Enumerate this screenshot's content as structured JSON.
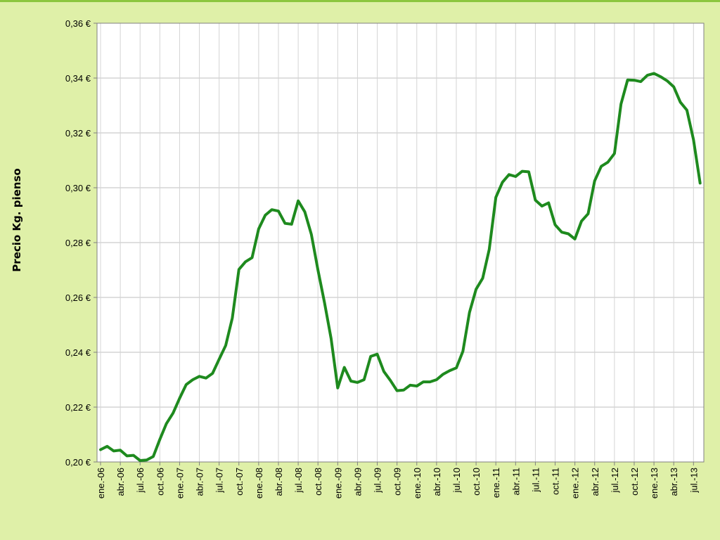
{
  "chart_data": {
    "type": "line",
    "title": "",
    "xlabel": "",
    "ylabel": "Precio Kg. pienso",
    "ylim": [
      0.2,
      0.36
    ],
    "yticks": [
      0.2,
      0.22,
      0.24,
      0.26,
      0.28,
      0.3,
      0.32,
      0.34,
      0.36
    ],
    "ytick_labels": [
      "0,20 €",
      "0,22 €",
      "0,24 €",
      "0,26 €",
      "0,28 €",
      "0,30 €",
      "0,32 €",
      "0,34 €",
      "0,36 €"
    ],
    "xtick_labels": [
      "ene.-06",
      "abr.-06",
      "jul.-06",
      "oct.-06",
      "ene.-07",
      "abr.-07",
      "jul.-07",
      "oct.-07",
      "ene.-08",
      "abr.-08",
      "jul.-08",
      "oct.-08",
      "ene.-09",
      "abr.-09",
      "jul.-09",
      "oct.-09",
      "ene.-10",
      "abr.-10",
      "jul.-10",
      "oct.-10",
      "ene.-11",
      "abr.-11",
      "jul.-11",
      "oct.-11",
      "ene.-12",
      "abr.-12",
      "jul.-12",
      "oct.-12",
      "ene.-13",
      "abr.-13",
      "jul.-13"
    ],
    "grid": true,
    "line_color": "#1e8a1e",
    "series": [
      {
        "values": [
          0.2045,
          0.2057,
          0.204,
          0.2043,
          0.2022,
          0.2024,
          0.2005,
          0.2007,
          0.202,
          0.2082,
          0.214,
          0.2178,
          0.2232,
          0.2282,
          0.23,
          0.2312,
          0.2306,
          0.2323,
          0.2375,
          0.2425,
          0.2525,
          0.2702,
          0.273,
          0.2745,
          0.285,
          0.29,
          0.292,
          0.2915,
          0.287,
          0.2867,
          0.2952,
          0.2912,
          0.283,
          0.27,
          0.258,
          0.245,
          0.227,
          0.2345,
          0.2295,
          0.229,
          0.23,
          0.2385,
          0.2393,
          0.233,
          0.2297,
          0.226,
          0.2262,
          0.228,
          0.2277,
          0.2292,
          0.2292,
          0.23,
          0.232,
          0.2333,
          0.2343,
          0.2403,
          0.2545,
          0.263,
          0.267,
          0.2775,
          0.2965,
          0.302,
          0.3048,
          0.3041,
          0.306,
          0.3058,
          0.2955,
          0.2933,
          0.2945,
          0.2865,
          0.2838,
          0.2832,
          0.2813,
          0.2878,
          0.2905,
          0.3025,
          0.3078,
          0.3093,
          0.3125,
          0.3305,
          0.3393,
          0.3392,
          0.3387,
          0.341,
          0.3417,
          0.3405,
          0.339,
          0.3368,
          0.3312,
          0.3283,
          0.3175,
          0.3017
        ]
      }
    ]
  }
}
